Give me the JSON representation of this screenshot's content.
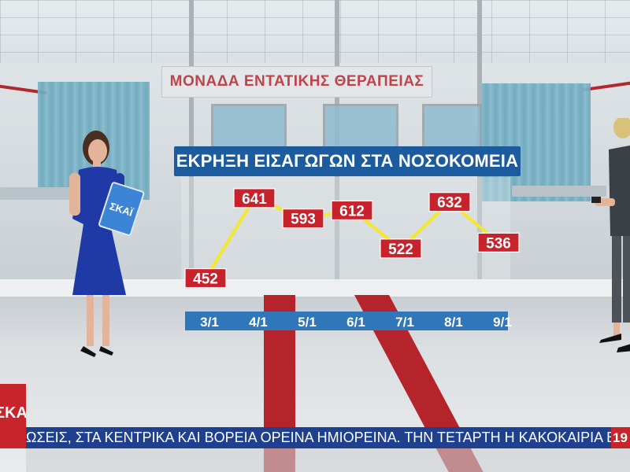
{
  "scene": {
    "wall_sign": "ΜΟΝΑΔΑ ΕΝΤΑΤΙΚΗΣ ΘΕΡΑΠΕΙΑΣ",
    "tablet_logo": "ΣΚΑΪ"
  },
  "chart_data": {
    "type": "line",
    "title": "ΕΚΡΗΞΗ ΕΙΣΑΓΩΓΩΝ ΣΤΑ ΝΟΣΟΚΟΜΕΙΑ",
    "categories": [
      "3/1",
      "4/1",
      "5/1",
      "6/1",
      "7/1",
      "8/1",
      "9/1"
    ],
    "values": [
      452,
      641,
      593,
      612,
      522,
      632,
      536
    ],
    "line_color": "#f5e72a",
    "label_color": "#c8222c",
    "axis_bar_color": "#2f77b8",
    "ylim": [
      440,
      650
    ]
  },
  "ticker": {
    "logo": "ΣΚΑΪ",
    "text": "ΩΣΕΙΣ, ΣΤΑ ΚΕΝΤΡΙΚΑ ΚΑΙ ΒΟΡΕΙΑ ΟΡΕΙΝΑ ΗΜΙΟΡΕΙΝΑ. ΤΗΝ ΤΕΤΑΡΤΗ Η ΚΑΚΟΚΑΙΡΙΑ ΒΑΘΜΙΑΙ",
    "end_text": "19"
  },
  "colors": {
    "ticker_bg": "#1f3f8f",
    "brand_red": "#c8242b",
    "title_bg": "#1b5b9e"
  }
}
